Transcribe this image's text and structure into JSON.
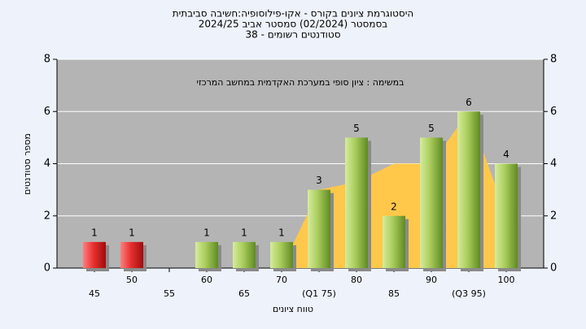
{
  "chart_data": {
    "type": "bar",
    "title": "היסטוגרמת ציונים בקורס - אקו-פילוסופיה:חשיבה סביבתית",
    "subtitle": "בסמסטר  (02/2024)  סמסטר אביב 2024/25",
    "subtitle2": "סטודנטים רשומים - 38",
    "annotation": "במשימה : ציון סופי במערכת האקדמית במחשב המרכזי",
    "y_label": "מספר סטודנטים",
    "x_label": "טווח ציונים",
    "categories": [
      "45",
      "50",
      "55",
      "60",
      "65",
      "70",
      "(Q1 75)",
      "80",
      "85",
      "90",
      "(Q3 95)",
      "100"
    ],
    "values": [
      1,
      1,
      0,
      1,
      1,
      1,
      3,
      5,
      2,
      5,
      6,
      4
    ],
    "colors": [
      "red",
      "red",
      "green",
      "green",
      "green",
      "green",
      "green",
      "green",
      "green",
      "green",
      "green",
      "green"
    ],
    "area": {
      "color": "#ffc84a",
      "values": [
        null,
        null,
        null,
        null,
        null,
        0,
        3,
        3.3,
        4,
        4,
        6,
        2
      ]
    },
    "ylim": [
      0,
      8
    ],
    "yticks": [
      0,
      2,
      4,
      6,
      8
    ],
    "grid": true
  }
}
